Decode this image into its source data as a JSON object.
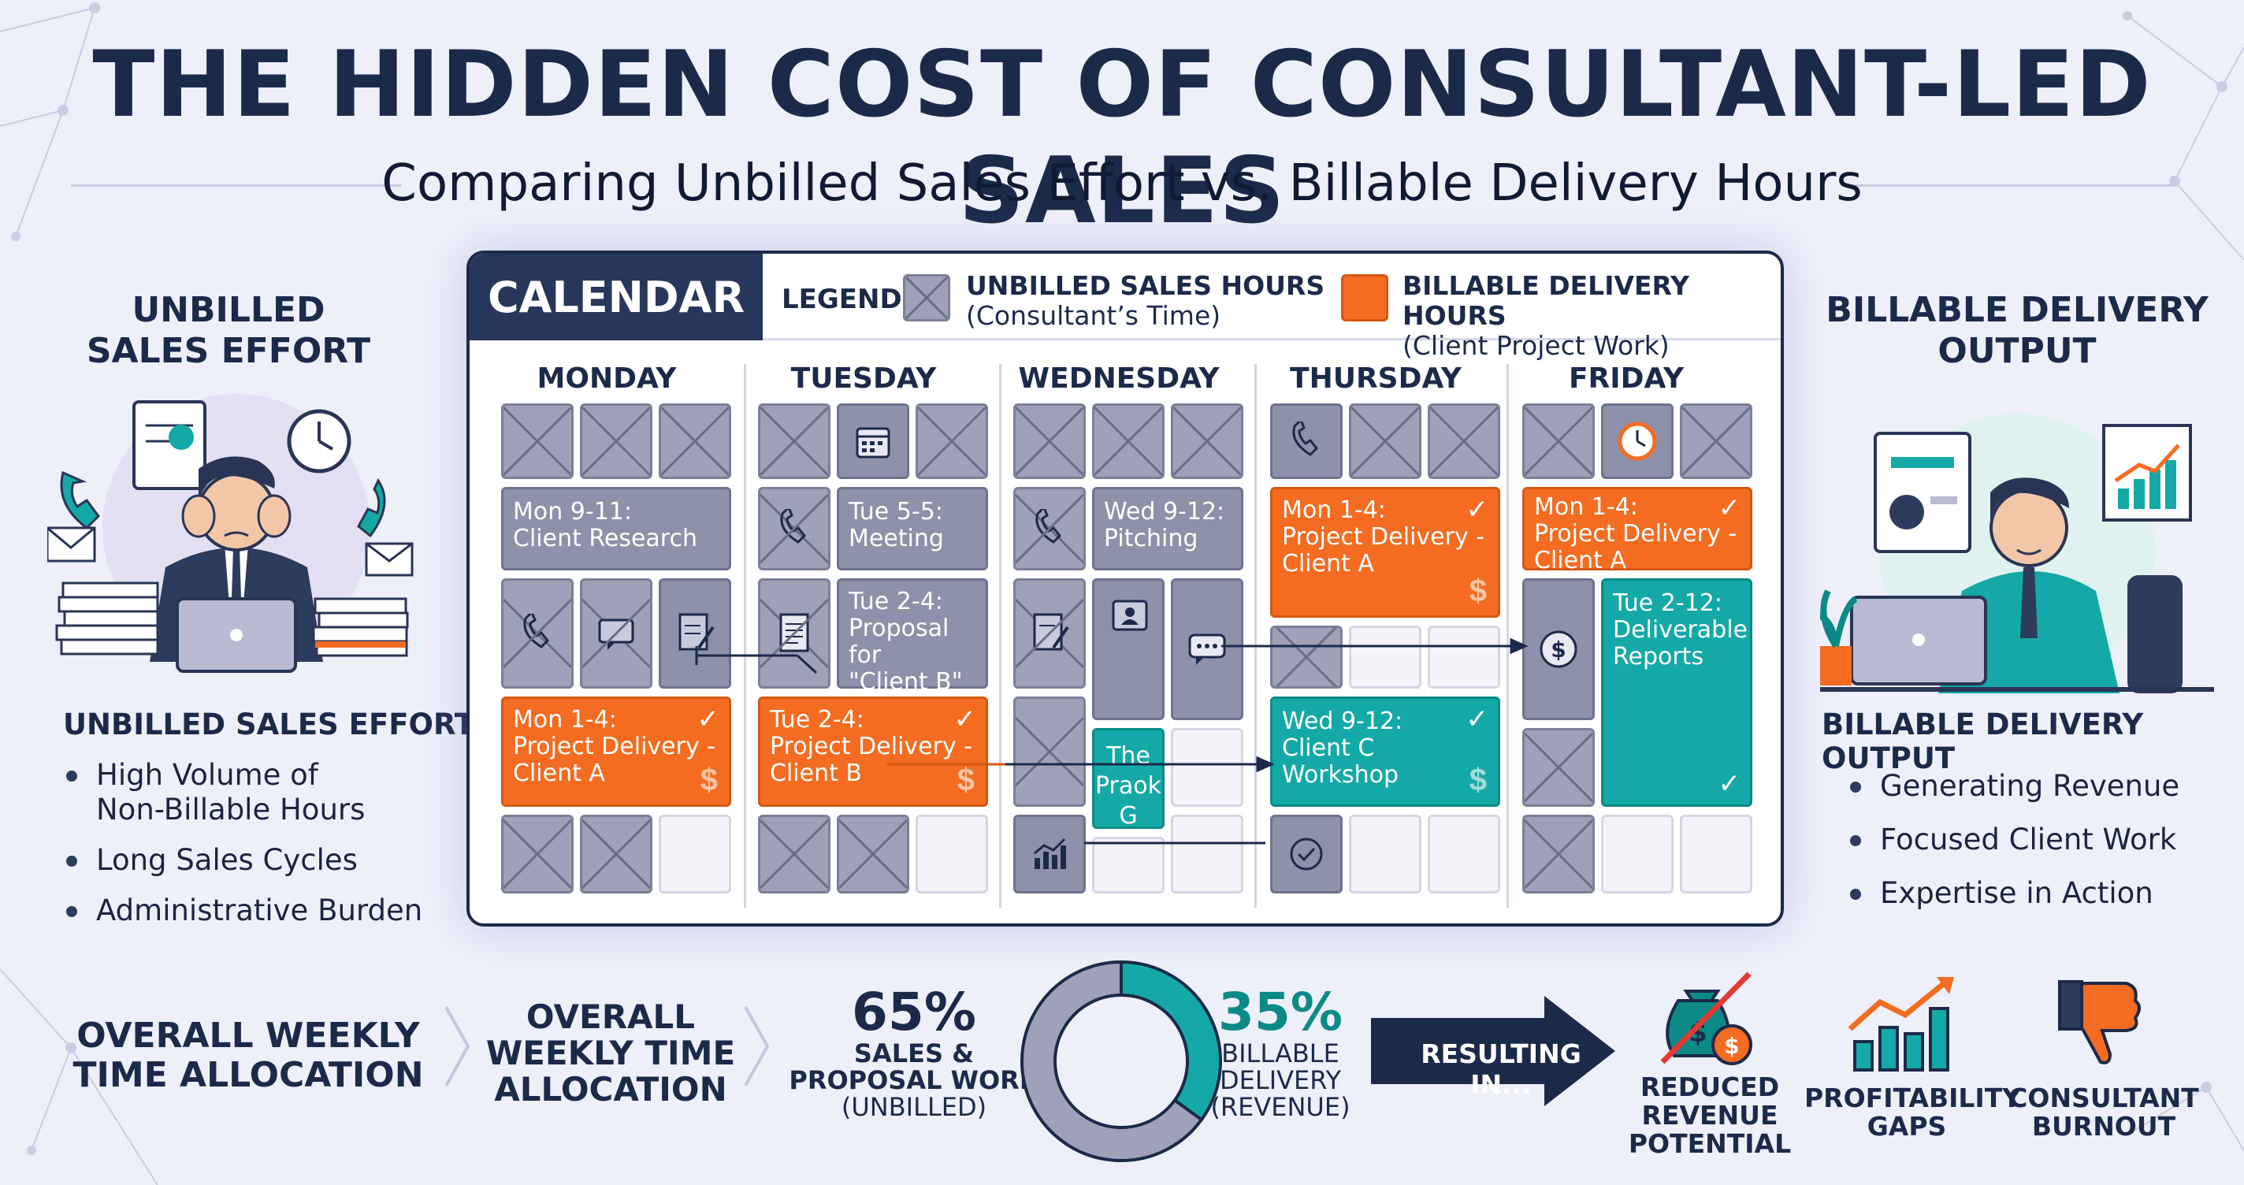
{
  "title": "THE HIDDEN COST OF CONSULTANT-LED SALES",
  "subtitle": "Comparing Unbilled Sales Effort vs. Billable Delivery Hours",
  "colors": {
    "navy": "#1c2a4a",
    "unbilled_gray": "#9ea1b8",
    "billable_orange": "#f36c21",
    "billable_teal": "#14a9a6",
    "background": "#eef0f9"
  },
  "left_panel": {
    "heading_line1": "UNBILLED",
    "heading_line2": "SALES EFFORT",
    "list_heading": "UNBILLED SALES EFFORT",
    "items": [
      "High Volume of",
      "Non-Billable Hours",
      "Long Sales Cycles",
      "Administrative Burden"
    ]
  },
  "right_panel": {
    "heading_line1": "BILLABLE DELIVERY",
    "heading_line2": "OUTPUT",
    "list_heading": "BILLABLE DELIVERY OUTPUT",
    "items": [
      "Generating Revenue",
      "Focused Client Work",
      "Expertise in Action"
    ]
  },
  "calendar": {
    "tab_label": "CALENDAR",
    "legend_label": "LEGEND",
    "legend_unbilled_title": "UNBILLED SALES HOURS",
    "legend_unbilled_sub": "(Consultant’s Time)",
    "legend_billable_title": "BILLABLE DELIVERY HOURS",
    "legend_billable_sub": "(Client Project Work)",
    "days": [
      "MONDAY",
      "TUESDAY",
      "WEDNESDAY",
      "THURSDAY",
      "FRIDAY"
    ],
    "events": {
      "mon_research_1": "Mon 9-11:",
      "mon_research_2": "Client Research",
      "mon_delivery_1": "Mon 1-4:",
      "mon_delivery_2": "Project Delivery -",
      "mon_delivery_3": "Client A",
      "tue_meeting_1": "Tue 5-5:",
      "tue_meeting_2": "Meeting",
      "tue_proposal_1": "Tue 2-4:",
      "tue_proposal_2": "Proposal for",
      "tue_proposal_3": "\"Client B\"",
      "tue_delivery_1": "Tue 2-4:",
      "tue_delivery_2": "Project Delivery -",
      "tue_delivery_3": "Client B",
      "wed_pitch_1": "Wed 9-12:",
      "wed_pitch_2": "Pitching",
      "wed_praok_1": "The",
      "wed_praok_2": "Praok",
      "wed_praok_3": "G",
      "thu_delivery_1": "Mon 1-4:",
      "thu_delivery_2": "Project Delivery -",
      "thu_delivery_3": "Client A",
      "thu_workshop_1": "Wed 9-12:",
      "thu_workshop_2": "Client C Workshop",
      "fri_delivery_1": "Mon 1-4:",
      "fri_delivery_2": "Project Delivery -",
      "fri_delivery_3": "Client A",
      "fri_reports_1": "Tue 2-12:",
      "fri_reports_2": "Deliverable",
      "fri_reports_3": "Reports"
    }
  },
  "bottom": {
    "allocation_left_1": "OVERALL WEEKLY",
    "allocation_left_2": "TIME ALLOCATION",
    "allocation_mid_1": "OVERALL",
    "allocation_mid_2": "WEEKLY TIME",
    "allocation_mid_3": "ALLOCATION",
    "unbilled_pct": "65%",
    "unbilled_label_1": "SALES &",
    "unbilled_label_2": "PROPOSAL WORK",
    "unbilled_label_3": "(UNBILLED)",
    "billable_pct": "35%",
    "billable_label_1": "BILLABLE",
    "billable_label_2": "DELIVERY",
    "billable_label_3": "(REVENUE)",
    "resulting": "RESULTING IN...",
    "outcomes": [
      {
        "line1": "REDUCED",
        "line2": "REVENUE",
        "line3": "POTENTIAL",
        "icon": "money-bag-crossed-icon"
      },
      {
        "line1": "PROFITABILITY",
        "line2": "GAPS",
        "icon": "growth-chart-icon"
      },
      {
        "line1": "CONSULTANT",
        "line2": "BURNOUT",
        "icon": "thumbs-down-icon"
      }
    ]
  },
  "chart_data": {
    "type": "pie",
    "labels": [
      "SALES & PROPOSAL WORK (UNBILLED)",
      "BILLABLE DELIVERY (REVENUE)"
    ],
    "values": [
      65,
      35
    ],
    "colors": [
      "#9ea1b8",
      "#14a9a6"
    ]
  }
}
